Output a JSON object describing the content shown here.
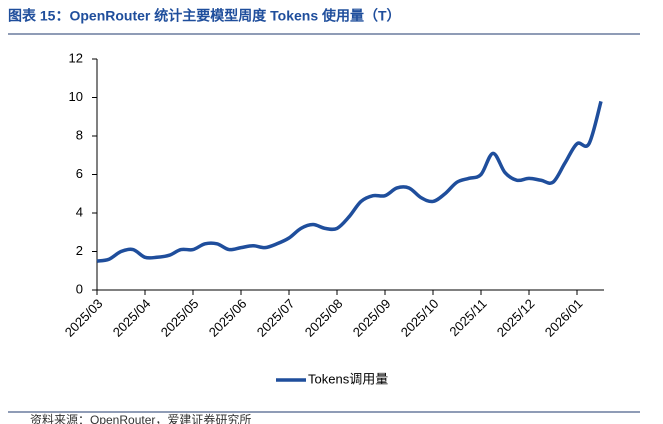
{
  "chart_data": {
    "type": "line",
    "title": "图表 15：OpenRouter 统计主要模型周度 Tokens 使用量（T）",
    "source": "资料来源：OpenRouter，爱建证券研究所",
    "categories": [
      "2025/03",
      null,
      null,
      null,
      "2025/04",
      null,
      null,
      null,
      "2025/05",
      null,
      null,
      null,
      "2025/06",
      null,
      null,
      null,
      "2025/07",
      null,
      null,
      null,
      "2025/08",
      null,
      null,
      null,
      "2025/09",
      null,
      null,
      null,
      "2025/10",
      null,
      null,
      null,
      "2025/11",
      null,
      null,
      null,
      "2025/12",
      null,
      null,
      null,
      "2026/01",
      null,
      null
    ],
    "series": [
      {
        "name": "Tokens调用量",
        "color": "#1f4e9c",
        "values": [
          1.5,
          1.6,
          2.0,
          2.1,
          1.7,
          1.7,
          1.8,
          2.1,
          2.1,
          2.4,
          2.4,
          2.1,
          2.2,
          2.3,
          2.2,
          2.4,
          2.7,
          3.2,
          3.4,
          3.2,
          3.2,
          3.8,
          4.6,
          4.9,
          4.9,
          5.3,
          5.3,
          4.8,
          4.6,
          5.0,
          5.6,
          5.8,
          6.0,
          7.1,
          6.1,
          5.7,
          5.8,
          5.7,
          5.6,
          6.6,
          7.6,
          7.6,
          9.8
        ]
      }
    ],
    "ylim": [
      0,
      12
    ],
    "yticks": [
      0,
      2,
      4,
      6,
      8,
      10,
      12
    ],
    "legend": "bottom"
  }
}
